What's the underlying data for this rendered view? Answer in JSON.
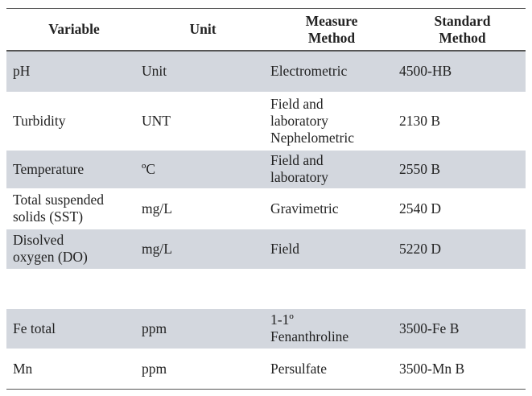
{
  "table": {
    "header": [
      "Variable",
      "Unit",
      "Measure\nMethod",
      "Standard\nMethod"
    ],
    "rows": [
      [
        "pH",
        "Unit",
        "Electrometric",
        "4500-HB"
      ],
      [
        "Turbidity",
        "UNT",
        "Field and\nlaboratory\nNephelometric",
        "2130 B"
      ],
      [
        "Temperature",
        "ºC",
        "Field and\nlaboratory",
        "2550 B"
      ],
      [
        "Total suspended\nsolids (SST)",
        "mg/L",
        "Gravimetric",
        "2540 D"
      ],
      [
        "Disolved\noxygen (DO)",
        "mg/L",
        "Field",
        "5220 D"
      ],
      [
        "Fe total",
        "ppm",
        "1-1º\nFenanthroline",
        "3500-Fe B"
      ],
      [
        "Mn",
        "ppm",
        "Persulfate",
        "3500-Mn B"
      ]
    ]
  }
}
